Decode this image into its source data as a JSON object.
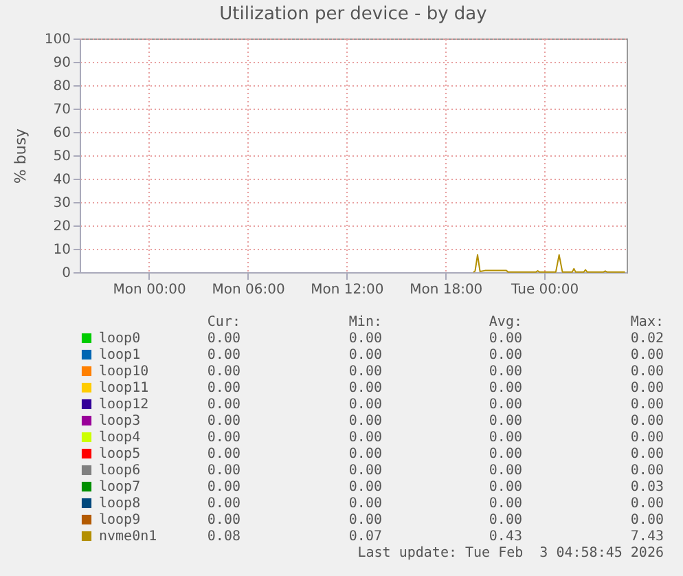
{
  "chart_data": {
    "type": "line",
    "title": "Utilization per device - by day",
    "ylabel": "% busy",
    "x": [
      "2026-02-02T19:42",
      "2026-02-02T19:48",
      "2026-02-02T19:57",
      "2026-02-02T20:06",
      "2026-02-02T20:24",
      "2026-02-02T21:42",
      "2026-02-02T21:48",
      "2026-02-02T23:30",
      "2026-02-02T23:36",
      "2026-02-02T23:42",
      "2026-02-03T00:42",
      "2026-02-03T00:54",
      "2026-02-03T01:06",
      "2026-02-03T01:42",
      "2026-02-03T01:48",
      "2026-02-03T01:54",
      "2026-02-03T02:24",
      "2026-02-03T02:30",
      "2026-02-03T02:36",
      "2026-02-03T03:36",
      "2026-02-03T03:42",
      "2026-02-03T03:48",
      "2026-02-03T04:54"
    ],
    "xlim": [
      "2026-02-01T19:48",
      "2026-02-03T05:00"
    ],
    "xticks": [
      {
        "value": "2026-02-02T00:00",
        "label": "Mon 00:00"
      },
      {
        "value": "2026-02-02T06:00",
        "label": "Mon 06:00"
      },
      {
        "value": "2026-02-02T12:00",
        "label": "Mon 12:00"
      },
      {
        "value": "2026-02-02T18:00",
        "label": "Mon 18:00"
      },
      {
        "value": "2026-02-03T00:00",
        "label": "Tue 00:00"
      }
    ],
    "ylim": [
      0,
      100
    ],
    "yticks": [
      0,
      10,
      20,
      30,
      40,
      50,
      60,
      70,
      80,
      90,
      100
    ],
    "grid": true,
    "legend": "bottom",
    "series": [
      {
        "name": "loop0",
        "color": "#00cc00",
        "values": [
          null,
          null,
          null,
          null,
          null,
          null,
          null,
          null,
          null,
          null,
          null,
          null,
          null,
          null,
          null,
          null,
          null,
          null,
          null,
          null,
          null,
          null,
          null
        ]
      },
      {
        "name": "loop1",
        "color": "#0066b3",
        "values": [
          null,
          null,
          null,
          null,
          null,
          null,
          null,
          null,
          null,
          null,
          null,
          null,
          null,
          null,
          null,
          null,
          null,
          null,
          null,
          null,
          null,
          null,
          null
        ]
      },
      {
        "name": "loop10",
        "color": "#ff8000",
        "values": [
          null,
          null,
          null,
          null,
          null,
          null,
          null,
          null,
          null,
          null,
          null,
          null,
          null,
          null,
          null,
          null,
          null,
          null,
          null,
          null,
          null,
          null,
          null
        ]
      },
      {
        "name": "loop11",
        "color": "#ffcc00",
        "values": [
          null,
          null,
          null,
          null,
          null,
          null,
          null,
          null,
          null,
          null,
          null,
          null,
          null,
          null,
          null,
          null,
          null,
          null,
          null,
          null,
          null,
          null,
          null
        ]
      },
      {
        "name": "loop12",
        "color": "#330099",
        "values": [
          null,
          null,
          null,
          null,
          null,
          null,
          null,
          null,
          null,
          null,
          null,
          null,
          null,
          null,
          null,
          null,
          null,
          null,
          null,
          null,
          null,
          null,
          null
        ]
      },
      {
        "name": "loop3",
        "color": "#990099",
        "values": [
          null,
          null,
          null,
          null,
          null,
          null,
          null,
          null,
          null,
          null,
          null,
          null,
          null,
          null,
          null,
          null,
          null,
          null,
          null,
          null,
          null,
          null,
          null
        ]
      },
      {
        "name": "loop4",
        "color": "#ccff00",
        "values": [
          null,
          null,
          null,
          null,
          null,
          null,
          null,
          null,
          null,
          null,
          null,
          null,
          null,
          null,
          null,
          null,
          null,
          null,
          null,
          null,
          null,
          null,
          null
        ]
      },
      {
        "name": "loop5",
        "color": "#ff0000",
        "values": [
          null,
          null,
          null,
          null,
          null,
          null,
          null,
          null,
          null,
          null,
          null,
          null,
          null,
          null,
          null,
          null,
          null,
          null,
          null,
          null,
          null,
          null,
          null
        ]
      },
      {
        "name": "loop6",
        "color": "#808080",
        "values": [
          null,
          null,
          null,
          null,
          null,
          null,
          null,
          null,
          null,
          null,
          null,
          null,
          null,
          null,
          null,
          null,
          null,
          null,
          null,
          null,
          null,
          null,
          null
        ]
      },
      {
        "name": "loop7",
        "color": "#008f00",
        "values": [
          null,
          null,
          null,
          null,
          null,
          null,
          null,
          null,
          null,
          null,
          null,
          null,
          null,
          null,
          null,
          null,
          null,
          null,
          null,
          null,
          null,
          null,
          null
        ]
      },
      {
        "name": "loop8",
        "color": "#00487d",
        "values": [
          null,
          null,
          null,
          null,
          null,
          null,
          null,
          null,
          null,
          null,
          null,
          null,
          null,
          null,
          null,
          null,
          null,
          null,
          null,
          null,
          null,
          null,
          null
        ]
      },
      {
        "name": "loop9",
        "color": "#b35a00",
        "values": [
          null,
          null,
          null,
          null,
          null,
          null,
          null,
          null,
          null,
          null,
          null,
          null,
          null,
          null,
          null,
          null,
          null,
          null,
          null,
          null,
          null,
          null,
          null
        ]
      },
      {
        "name": "nvme0n1",
        "color": "#b38f00",
        "values": [
          0,
          0.5,
          7.4,
          0.3,
          0.7,
          0.7,
          0.1,
          0.1,
          0.6,
          0.1,
          0.1,
          7.4,
          0.1,
          0.1,
          1.5,
          0.1,
          0.1,
          1,
          0.1,
          0.1,
          0.5,
          0.1,
          0.1
        ]
      }
    ],
    "annotations": [
      "Cur:",
      "Min:",
      "Avg:",
      "Max:",
      "0.00",
      "0.00",
      "0.00",
      "0.02",
      "0.00",
      "0.00",
      "0.00",
      "0.00",
      "0.00",
      "0.00",
      "0.00",
      "0.00",
      "0.00",
      "0.00",
      "0.00",
      "0.00",
      "0.00",
      "0.00",
      "0.00",
      "0.00",
      "0.00",
      "0.00",
      "0.00",
      "0.00",
      "0.00",
      "0.00",
      "0.00",
      "0.00",
      "0.00",
      "0.00",
      "0.00",
      "0.00",
      "0.00",
      "0.00",
      "0.00",
      "0.00",
      "0.00",
      "0.00",
      "0.00",
      "0.03",
      "0.00",
      "0.00",
      "0.00",
      "0.00",
      "0.00",
      "0.00",
      "0.00",
      "0.00",
      "0.08",
      "0.07",
      "0.43",
      "7.43",
      "Last update: Tue Feb  3 04:58:45 2026"
    ]
  }
}
